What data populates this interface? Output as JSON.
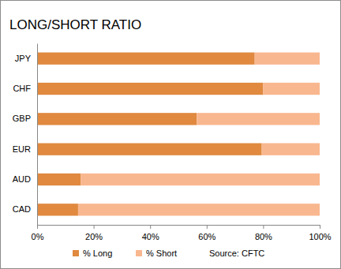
{
  "chart_data": {
    "type": "bar",
    "title": "LONG/SHORT RATIO",
    "orientation": "horizontal",
    "stacked": true,
    "categories": [
      "JPY",
      "CHF",
      "GBP",
      "EUR",
      "AUD",
      "CAD"
    ],
    "series": [
      {
        "name": "% Long",
        "color": "#e0893f",
        "values": [
          77,
          80,
          56.5,
          79.5,
          15.5,
          14.5
        ]
      },
      {
        "name": "% Short",
        "color": "#f9b78f",
        "values": [
          23,
          20,
          43.5,
          20.5,
          84.5,
          85.5
        ]
      }
    ],
    "xlim": [
      0,
      100
    ],
    "xticks": [
      {
        "value": 0,
        "label": "0%"
      },
      {
        "value": 20,
        "label": "20%"
      },
      {
        "value": 40,
        "label": "40%"
      },
      {
        "value": 60,
        "label": "60%"
      },
      {
        "value": 80,
        "label": "80%"
      },
      {
        "value": 100,
        "label": "100%"
      }
    ],
    "grid": false,
    "legend": "bottom",
    "annotations": [
      "Source: CFTC"
    ]
  }
}
